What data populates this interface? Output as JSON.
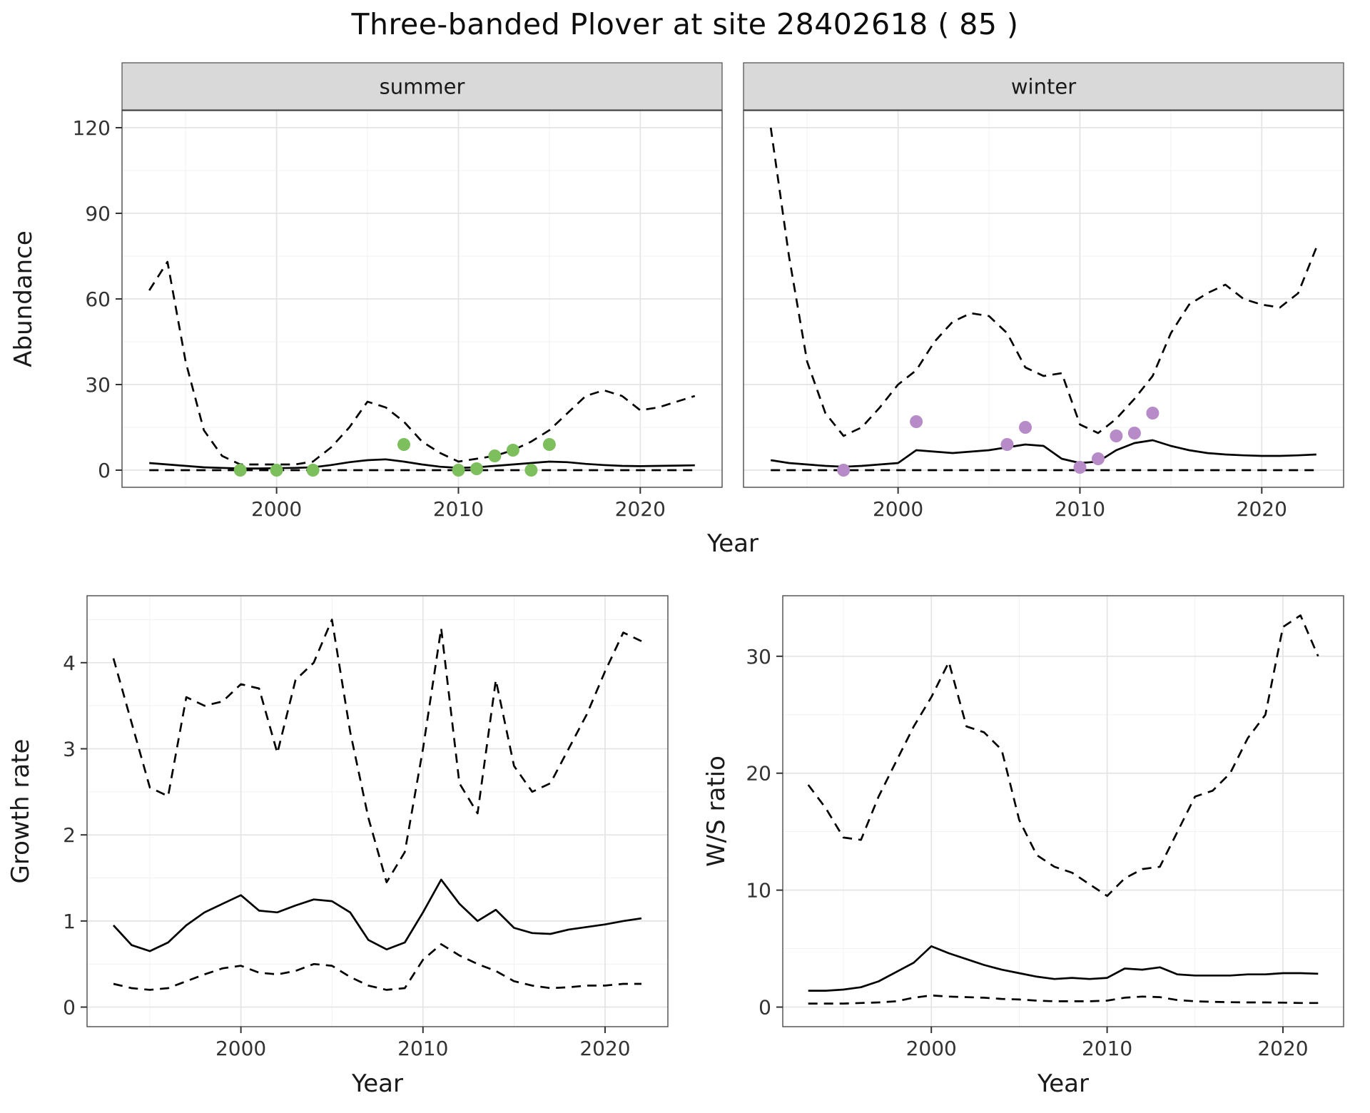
{
  "title": "Three-banded Plover at site 28402618 ( 85 )",
  "colors": {
    "summer_points": "#7dbf5d",
    "winter_points": "#b68bc7",
    "line": "#000000",
    "strip_bg": "#d9d9d9",
    "grid_major": "#e4e4e4",
    "grid_minor": "#f1f1f1",
    "panel_border": "#4a4a4a",
    "axis_text": "#333333",
    "background": "#ffffff"
  },
  "chart_data": [
    {
      "id": "abundance-summer",
      "type": "line",
      "title": "summer",
      "xlabel": "Year",
      "ylabel": "Abundance",
      "xlim": [
        1993,
        2023
      ],
      "ylim": [
        0,
        120
      ],
      "xticks": [
        2000,
        2010,
        2020
      ],
      "yticks": [
        0,
        30,
        60,
        90,
        120
      ],
      "grid": true,
      "legend": "none",
      "x": [
        1993,
        1994,
        1995,
        1996,
        1997,
        1998,
        1999,
        2000,
        2001,
        2002,
        2003,
        2004,
        2005,
        2006,
        2007,
        2008,
        2009,
        2010,
        2011,
        2012,
        2013,
        2014,
        2015,
        2016,
        2017,
        2018,
        2019,
        2020,
        2021,
        2022,
        2023
      ],
      "series": [
        {
          "name": "upper_ci",
          "style": "dashed",
          "values": [
            63,
            73,
            38,
            14,
            5,
            2,
            2,
            2,
            2,
            3,
            8,
            15,
            24,
            22,
            17,
            10,
            6,
            3,
            4,
            5,
            7,
            10,
            14,
            20,
            26,
            28,
            26,
            21,
            22,
            24,
            26
          ]
        },
        {
          "name": "median",
          "style": "solid",
          "values": [
            2.5,
            2,
            1.5,
            1,
            0.8,
            0.6,
            0.6,
            0.7,
            0.8,
            1,
            1.8,
            2.8,
            3.5,
            3.8,
            3,
            2,
            1.2,
            0.8,
            1,
            1.5,
            2,
            2.5,
            3,
            2.8,
            2.2,
            1.8,
            1.5,
            1.4,
            1.5,
            1.6,
            1.7
          ]
        },
        {
          "name": "lower_ci",
          "style": "dashed",
          "values": [
            0,
            0,
            0,
            0,
            0,
            0,
            0,
            0,
            0,
            0,
            0,
            0,
            0,
            0,
            0,
            0,
            0,
            0,
            0,
            0,
            0,
            0,
            0,
            0,
            0,
            0,
            0,
            0,
            0,
            0,
            0
          ]
        }
      ],
      "points": {
        "name": "observed-abundance-summer",
        "color": "#7dbf5d",
        "data": [
          [
            1998,
            0
          ],
          [
            2000,
            0
          ],
          [
            2002,
            0
          ],
          [
            2007,
            9
          ],
          [
            2010,
            0
          ],
          [
            2011,
            0.5
          ],
          [
            2012,
            5
          ],
          [
            2013,
            7
          ],
          [
            2014,
            0
          ],
          [
            2015,
            9
          ]
        ]
      }
    },
    {
      "id": "abundance-winter",
      "type": "line",
      "title": "winter",
      "xlim": [
        1993,
        2023
      ],
      "ylim": [
        0,
        120
      ],
      "xticks": [
        2000,
        2010,
        2020
      ],
      "yticks": [
        0,
        30,
        60,
        90,
        120
      ],
      "grid": true,
      "legend": "none",
      "x": [
        1993,
        1994,
        1995,
        1996,
        1997,
        1998,
        1999,
        2000,
        2001,
        2002,
        2003,
        2004,
        2005,
        2006,
        2007,
        2008,
        2009,
        2010,
        2011,
        2012,
        2013,
        2014,
        2015,
        2016,
        2017,
        2018,
        2019,
        2020,
        2021,
        2022,
        2023
      ],
      "series": [
        {
          "name": "upper_ci",
          "style": "dashed",
          "values": [
            120,
            75,
            38,
            20,
            12,
            15,
            22,
            30,
            35,
            45,
            52,
            55,
            54,
            48,
            36,
            33,
            34,
            16,
            13,
            18,
            25,
            33,
            48,
            58,
            62,
            65,
            60,
            58,
            57,
            62,
            78
          ]
        },
        {
          "name": "median",
          "style": "solid",
          "values": [
            3.5,
            2.5,
            2,
            1.5,
            1.2,
            1.5,
            2,
            2.5,
            7,
            6.5,
            6,
            6.5,
            7,
            8,
            9,
            8.5,
            4,
            2.5,
            3,
            7,
            9.5,
            10.5,
            8.5,
            7,
            6,
            5.5,
            5.2,
            5,
            5,
            5.2,
            5.5
          ]
        },
        {
          "name": "lower_ci",
          "style": "dashed",
          "values": [
            0,
            0,
            0,
            0,
            0,
            0,
            0,
            0,
            0,
            0,
            0,
            0,
            0,
            0,
            0,
            0,
            0,
            0,
            0,
            0,
            0,
            0,
            0,
            0,
            0,
            0,
            0,
            0,
            0,
            0,
            0
          ]
        }
      ],
      "points": {
        "name": "observed-abundance-winter",
        "color": "#b68bc7",
        "data": [
          [
            1997,
            0
          ],
          [
            2001,
            17
          ],
          [
            2006,
            9
          ],
          [
            2007,
            15
          ],
          [
            2010,
            1
          ],
          [
            2011,
            4
          ],
          [
            2012,
            12
          ],
          [
            2013,
            13
          ],
          [
            2014,
            20
          ]
        ]
      }
    },
    {
      "id": "growth-rate",
      "type": "line",
      "xlabel": "Year",
      "ylabel": "Growth rate",
      "xlim": [
        1993,
        2022
      ],
      "ylim": [
        0,
        4.55
      ],
      "xticks": [
        2000,
        2010,
        2020
      ],
      "yticks": [
        0,
        1,
        2,
        3,
        4
      ],
      "grid": true,
      "legend": "none",
      "x": [
        1993,
        1994,
        1995,
        1996,
        1997,
        1998,
        1999,
        2000,
        2001,
        2002,
        2003,
        2004,
        2005,
        2006,
        2007,
        2008,
        2009,
        2010,
        2011,
        2012,
        2013,
        2014,
        2015,
        2016,
        2017,
        2018,
        2019,
        2020,
        2021,
        2022
      ],
      "series": [
        {
          "name": "upper_ci",
          "style": "dashed",
          "values": [
            4.05,
            3.3,
            2.55,
            2.45,
            3.6,
            3.5,
            3.55,
            3.75,
            3.7,
            2.95,
            3.8,
            4.0,
            4.5,
            3.2,
            2.2,
            1.45,
            1.8,
            3.0,
            4.4,
            2.6,
            2.25,
            3.8,
            2.8,
            2.5,
            2.6,
            3.0,
            3.4,
            3.9,
            4.35,
            4.25
          ]
        },
        {
          "name": "median",
          "style": "solid",
          "values": [
            0.95,
            0.72,
            0.65,
            0.75,
            0.95,
            1.1,
            1.2,
            1.3,
            1.12,
            1.1,
            1.18,
            1.25,
            1.23,
            1.1,
            0.78,
            0.67,
            0.75,
            1.1,
            1.48,
            1.2,
            1.0,
            1.13,
            0.92,
            0.86,
            0.85,
            0.9,
            0.93,
            0.96,
            1.0,
            1.03
          ]
        },
        {
          "name": "lower_ci",
          "style": "dashed",
          "values": [
            0.27,
            0.22,
            0.2,
            0.22,
            0.3,
            0.38,
            0.45,
            0.48,
            0.4,
            0.38,
            0.42,
            0.5,
            0.48,
            0.35,
            0.25,
            0.2,
            0.22,
            0.55,
            0.73,
            0.6,
            0.5,
            0.42,
            0.3,
            0.25,
            0.22,
            0.23,
            0.25,
            0.25,
            0.27,
            0.27
          ]
        }
      ]
    },
    {
      "id": "ws-ratio",
      "type": "line",
      "xlabel": "Year",
      "ylabel": "W/S ratio",
      "xlim": [
        1993,
        2022
      ],
      "ylim": [
        0,
        33.5
      ],
      "xticks": [
        2000,
        2010,
        2020
      ],
      "yticks": [
        0,
        10,
        20,
        30
      ],
      "grid": true,
      "legend": "none",
      "x": [
        1993,
        1994,
        1995,
        1996,
        1997,
        1998,
        1999,
        2000,
        2001,
        2002,
        2003,
        2004,
        2005,
        2006,
        2007,
        2008,
        2009,
        2010,
        2011,
        2012,
        2013,
        2014,
        2015,
        2016,
        2017,
        2018,
        2019,
        2020,
        2021,
        2022
      ],
      "series": [
        {
          "name": "upper_ci",
          "style": "dashed",
          "values": [
            19,
            17,
            14.5,
            14.3,
            18,
            21,
            24,
            26.5,
            29.5,
            24,
            23.5,
            22,
            16,
            13,
            12,
            11.5,
            10.5,
            9.5,
            11,
            11.8,
            12,
            15,
            18,
            18.5,
            20,
            23,
            25,
            32.5,
            33.5,
            30
          ]
        },
        {
          "name": "median",
          "style": "solid",
          "values": [
            1.4,
            1.4,
            1.5,
            1.7,
            2.2,
            3.0,
            3.8,
            5.2,
            4.6,
            4.1,
            3.6,
            3.2,
            2.9,
            2.6,
            2.4,
            2.5,
            2.4,
            2.5,
            3.3,
            3.2,
            3.4,
            2.8,
            2.7,
            2.7,
            2.7,
            2.8,
            2.8,
            2.9,
            2.9,
            2.85
          ]
        },
        {
          "name": "lower_ci",
          "style": "dashed",
          "values": [
            0.3,
            0.3,
            0.3,
            0.35,
            0.4,
            0.5,
            0.8,
            1.0,
            0.9,
            0.85,
            0.8,
            0.7,
            0.65,
            0.55,
            0.5,
            0.5,
            0.5,
            0.55,
            0.8,
            0.9,
            0.85,
            0.6,
            0.5,
            0.45,
            0.42,
            0.4,
            0.4,
            0.38,
            0.35,
            0.35
          ]
        }
      ]
    }
  ]
}
